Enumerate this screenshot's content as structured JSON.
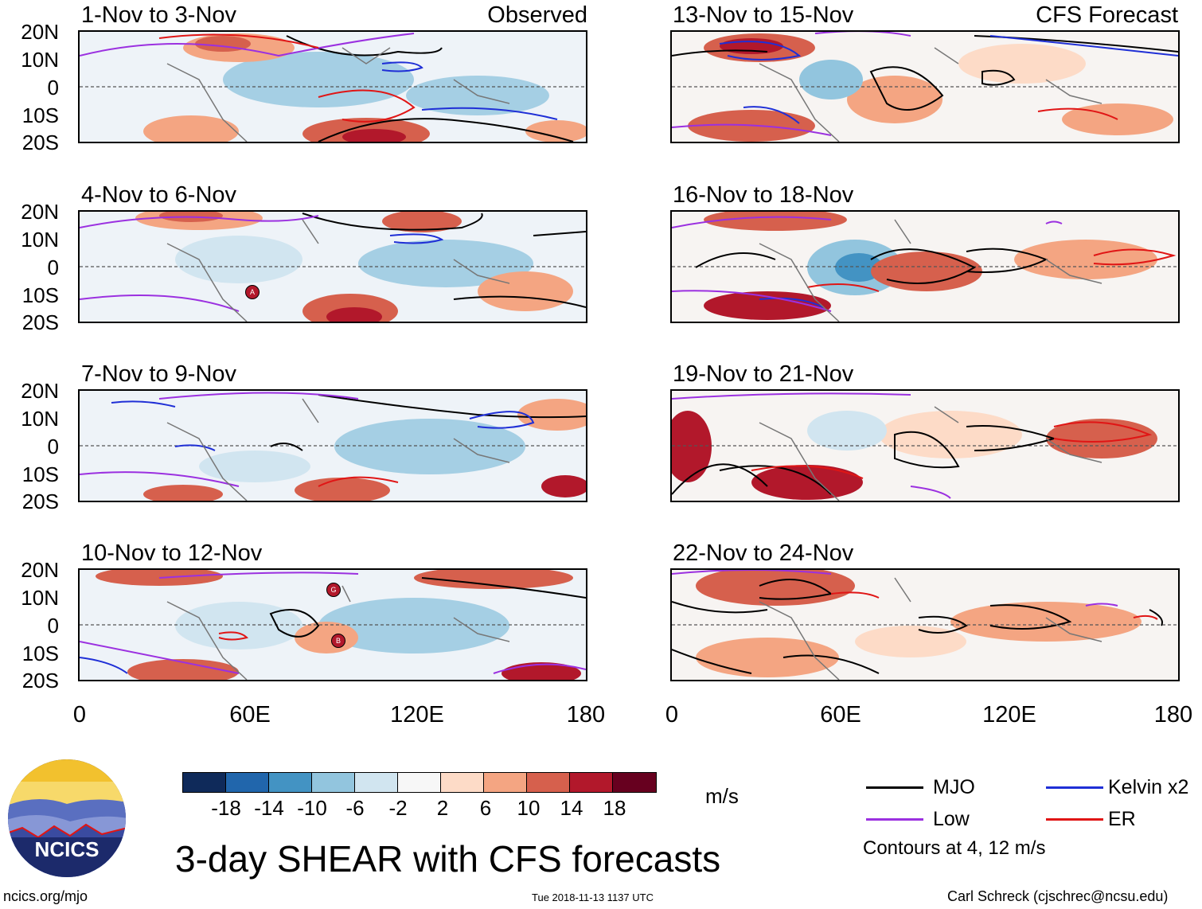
{
  "panels": {
    "left": [
      {
        "title": "1-Nov to 3-Nov",
        "label": "Observed"
      },
      {
        "title": "4-Nov to 6-Nov",
        "label": ""
      },
      {
        "title": "7-Nov to 9-Nov",
        "label": ""
      },
      {
        "title": "10-Nov to 12-Nov",
        "label": ""
      }
    ],
    "right": [
      {
        "title": "13-Nov to 15-Nov",
        "label": "CFS Forecast"
      },
      {
        "title": "16-Nov to 18-Nov",
        "label": ""
      },
      {
        "title": "19-Nov to 21-Nov",
        "label": ""
      },
      {
        "title": "22-Nov to 24-Nov",
        "label": ""
      }
    ]
  },
  "lat_labels": [
    "20N",
    "10N",
    "0",
    "10S",
    "20S"
  ],
  "lon_labels": [
    "0",
    "60E",
    "120E",
    "180"
  ],
  "storm_markers": {
    "a": "A",
    "g": "G",
    "b": "B"
  },
  "colorbar": {
    "ticks": [
      "-18",
      "-14",
      "-10",
      "-6",
      "-2",
      "2",
      "6",
      "10",
      "14",
      "18"
    ],
    "colors": [
      "#0f2a5a",
      "#2166ac",
      "#4393c3",
      "#92c5de",
      "#d1e5f0",
      "#f7f7f7",
      "#fddbc7",
      "#f4a582",
      "#d6604d",
      "#b2182b",
      "#67001f"
    ],
    "units": "m/s"
  },
  "legend": {
    "mjo": {
      "label": "MJO",
      "color": "#000000"
    },
    "kelvin": {
      "label": "Kelvin x2",
      "color": "#1f2fd6"
    },
    "low": {
      "label": "Low",
      "color": "#9b30e0"
    },
    "er": {
      "label": "ER",
      "color": "#e01515"
    },
    "note": "Contours at 4, 12 m/s"
  },
  "main_title": "3-day SHEAR with CFS forecasts",
  "logo_text": "NCICS",
  "footer": {
    "url": "ncics.org/mjo",
    "timestamp": "Tue 2018-11-13 1137 UTC",
    "author": "Carl Schreck (cjschrec@ncsu.edu)"
  }
}
